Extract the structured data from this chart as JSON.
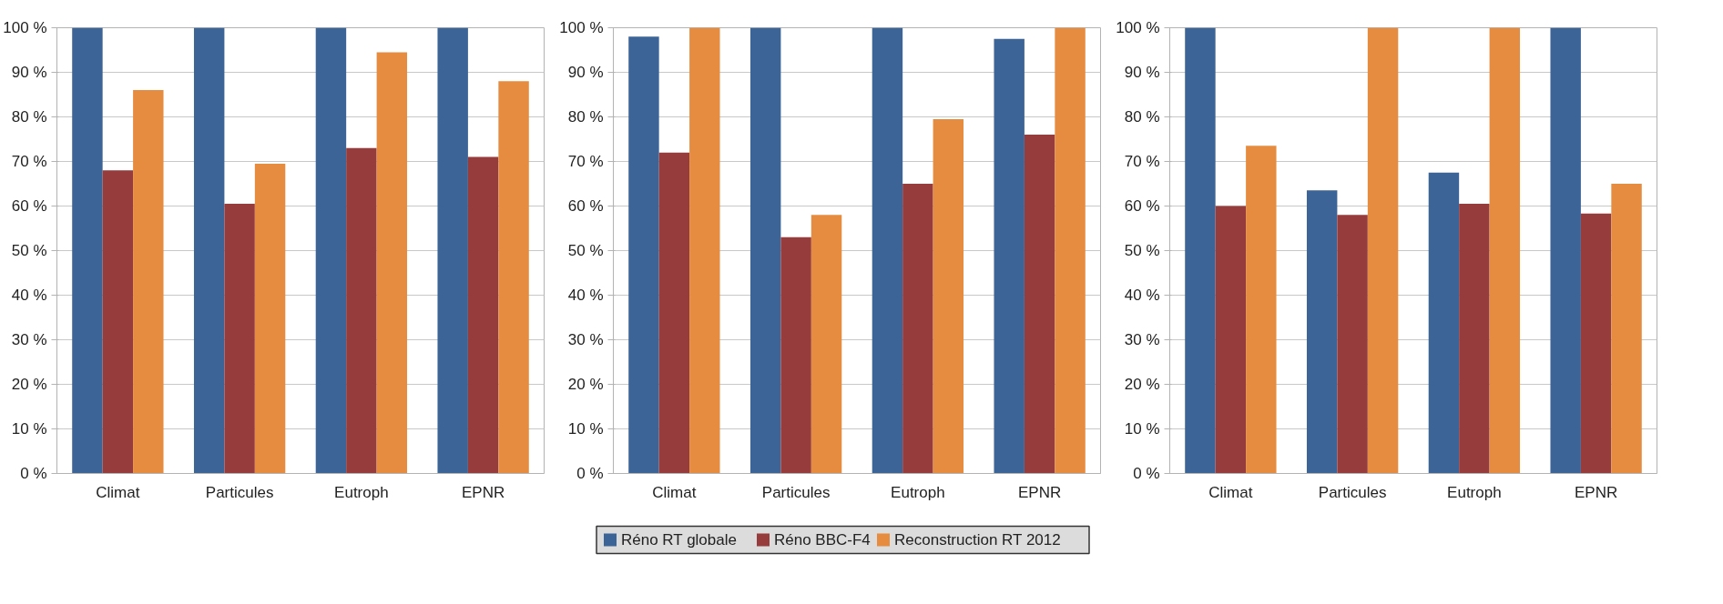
{
  "chart_data": [
    {
      "type": "bar",
      "categories": [
        "Climat",
        "Particules",
        "Eutroph",
        "EPNR"
      ],
      "ylim": [
        0,
        100
      ],
      "yticks": [
        {
          "value": 0,
          "label": "0 %"
        },
        {
          "value": 10,
          "label": "10 %"
        },
        {
          "value": 20,
          "label": "20 %"
        },
        {
          "value": 30,
          "label": "30 %"
        },
        {
          "value": 40,
          "label": "40 %"
        },
        {
          "value": 50,
          "label": "50 %"
        },
        {
          "value": 60,
          "label": "60 %"
        },
        {
          "value": 70,
          "label": "70 %"
        },
        {
          "value": 80,
          "label": "80 %"
        },
        {
          "value": 90,
          "label": "90 %"
        },
        {
          "value": 100,
          "label": "100 %"
        }
      ],
      "grid": "y",
      "series": [
        {
          "color": "#3c6496",
          "values": [
            100,
            100,
            100,
            100
          ]
        },
        {
          "color": "#963c3c",
          "values": [
            68,
            60.5,
            73,
            71
          ]
        },
        {
          "color": "#e68c41",
          "values": [
            86,
            69.5,
            94.5,
            88
          ]
        }
      ]
    },
    {
      "type": "bar",
      "categories": [
        "Climat",
        "Particules",
        "Eutroph",
        "EPNR"
      ],
      "ylim": [
        0,
        100
      ],
      "yticks": [
        {
          "value": 0,
          "label": "0 %"
        },
        {
          "value": 10,
          "label": "10 %"
        },
        {
          "value": 20,
          "label": "20 %"
        },
        {
          "value": 30,
          "label": "30 %"
        },
        {
          "value": 40,
          "label": "40 %"
        },
        {
          "value": 50,
          "label": "50 %"
        },
        {
          "value": 60,
          "label": "60 %"
        },
        {
          "value": 70,
          "label": "70 %"
        },
        {
          "value": 80,
          "label": "80 %"
        },
        {
          "value": 90,
          "label": "90 %"
        },
        {
          "value": 100,
          "label": "100 %"
        }
      ],
      "grid": "y",
      "legend": "bottom",
      "series": [
        {
          "name": "Réno RT globale",
          "color": "#3c6496",
          "values": [
            98,
            100,
            100,
            97.5
          ]
        },
        {
          "name": "Réno BBC-F4",
          "color": "#963c3c",
          "values": [
            72,
            53,
            65,
            76
          ]
        },
        {
          "name": "Reconstruction RT 2012",
          "color": "#e68c41",
          "values": [
            100,
            58,
            79.5,
            100
          ]
        }
      ]
    },
    {
      "type": "bar",
      "categories": [
        "Climat",
        "Particules",
        "Eutroph",
        "EPNR"
      ],
      "ylim": [
        0,
        100
      ],
      "yticks": [
        {
          "value": 0,
          "label": "0 %"
        },
        {
          "value": 10,
          "label": "10 %"
        },
        {
          "value": 20,
          "label": "20 %"
        },
        {
          "value": 30,
          "label": "30 %"
        },
        {
          "value": 40,
          "label": "40 %"
        },
        {
          "value": 50,
          "label": "50 %"
        },
        {
          "value": 60,
          "label": "60 %"
        },
        {
          "value": 70,
          "label": "70 %"
        },
        {
          "value": 80,
          "label": "80 %"
        },
        {
          "value": 90,
          "label": "90 %"
        },
        {
          "value": 100,
          "label": "100 %"
        }
      ],
      "grid": "y",
      "series": [
        {
          "color": "#3c6496",
          "values": [
            100,
            63.5,
            67.5,
            100
          ]
        },
        {
          "color": "#963c3c",
          "values": [
            60,
            58,
            60.5,
            58.3
          ]
        },
        {
          "color": "#e68c41",
          "values": [
            73.5,
            100,
            100,
            65
          ]
        }
      ]
    }
  ]
}
